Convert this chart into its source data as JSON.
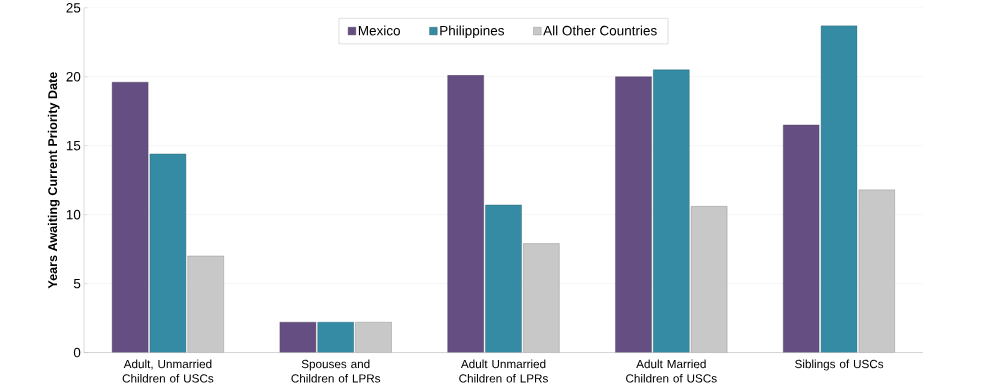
{
  "chart_data": {
    "type": "bar",
    "ylabel": "Years Awaiting Current Priority Date",
    "categories": [
      "Adult, Unmarried Children of USCs",
      "Spouses and Children of LPRs",
      "Adult Unmarried Children of LPRs",
      "Adult Married Children of USCs",
      "Siblings of USCs"
    ],
    "series": [
      {
        "name": "Mexico",
        "color": "#654f82",
        "values": [
          19.6,
          2.2,
          20.1,
          20.0,
          16.5
        ]
      },
      {
        "name": "Philippines",
        "color": "#358ba3",
        "values": [
          14.4,
          2.2,
          10.7,
          20.5,
          23.7
        ]
      },
      {
        "name": "All Other Countries",
        "color": "#c8c8c8",
        "values": [
          7.0,
          2.2,
          7.9,
          10.6,
          11.8
        ]
      }
    ],
    "ylim": [
      0,
      25
    ],
    "yticks": [
      0,
      5,
      10,
      15,
      20,
      25
    ],
    "grid": "y",
    "legend": "top"
  }
}
